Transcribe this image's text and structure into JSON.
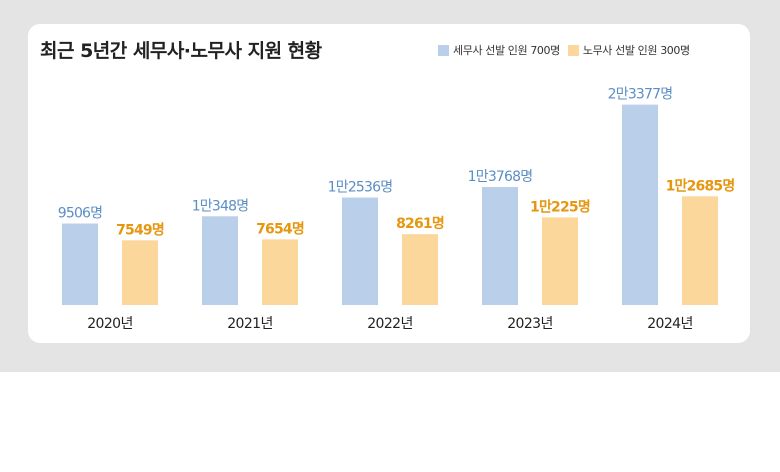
{
  "chart_data": {
    "type": "bar",
    "title": "최근 5년간 세무사·노무사 지원 현황",
    "categories": [
      "2020년",
      "2021년",
      "2022년",
      "2023년",
      "2024년"
    ],
    "series": [
      {
        "name": "세무사 선발 인원 700명",
        "color": "#b9cfea",
        "label_color": "#5b8ec5",
        "values": [
          9506,
          10348,
          12536,
          13768,
          23377
        ],
        "labels": [
          "9506명",
          "1만348명",
          "1만2536명",
          "1만3768명",
          "2만3377명"
        ]
      },
      {
        "name": "노무사 선발 인원 300명",
        "color": "#fbd79b",
        "label_color": "#e6960f",
        "values": [
          7549,
          7654,
          8261,
          10225,
          12685
        ],
        "labels": [
          "7549명",
          "7654명",
          "8261명",
          "1만225명",
          "1만2685명"
        ]
      }
    ],
    "ylim": [
      0,
      24500
    ],
    "grid": false,
    "legend": "top-right"
  }
}
